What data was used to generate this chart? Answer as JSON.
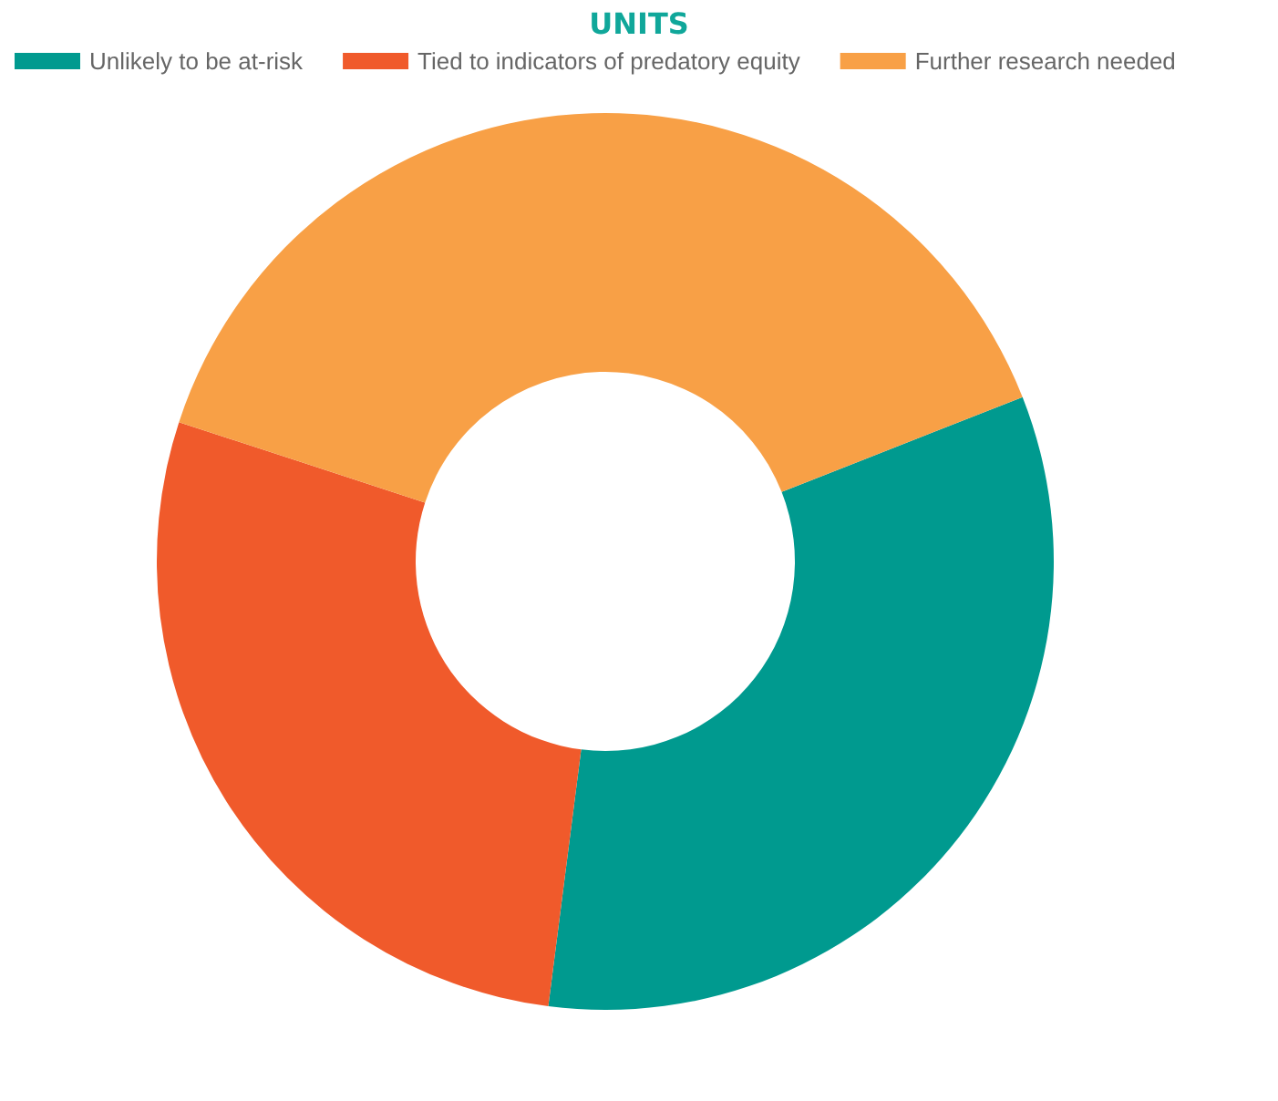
{
  "chart_data": {
    "type": "donut",
    "title": "UNITS",
    "categories": [
      "Unlikely to be at-risk",
      "Tied to indicators of predatory equity",
      "Further research needed"
    ],
    "values": [
      33,
      28,
      39
    ],
    "colors": [
      "#009a8f",
      "#f05a2b",
      "#f8a046"
    ],
    "legend": "top"
  }
}
